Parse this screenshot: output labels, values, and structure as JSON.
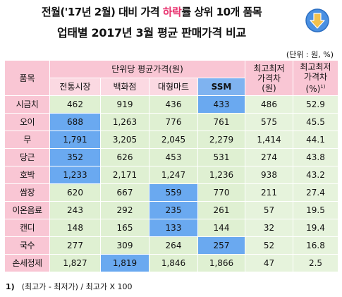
{
  "title": {
    "line1_pre": "전월('17년 2월) 대비 가격 ",
    "line1_hl": "하락",
    "line1_post": "률 상위 10개 품목",
    "line2": "업태별 2017년 3월 평균 판매가격 비교",
    "highlight_color": "#e8336f",
    "arrow_icon": "down-arrow-icon",
    "arrow_color": "#4a90e2"
  },
  "unit": "(단위 : 원, %)",
  "header": {
    "item": "품목",
    "avg_price": "단위당 평균가격(원)",
    "gap": "최고최저\n가격차\n(원)",
    "rate": "최고최저\n가격차",
    "rate_pct": "(%)",
    "rate_sup": "1)",
    "shops": [
      "전통시장",
      "백화점",
      "대형마트",
      "SSM"
    ]
  },
  "rows": [
    {
      "name": "시금치",
      "values": [
        "462",
        "919",
        "436",
        "433"
      ],
      "min_index": 3,
      "gap": "486",
      "rate": "52.9"
    },
    {
      "name": "오이",
      "values": [
        "688",
        "1,263",
        "776",
        "761"
      ],
      "min_index": 0,
      "gap": "575",
      "rate": "45.5"
    },
    {
      "name": "무",
      "values": [
        "1,791",
        "3,205",
        "2,045",
        "2,279"
      ],
      "min_index": 0,
      "gap": "1,414",
      "rate": "44.1"
    },
    {
      "name": "당근",
      "values": [
        "352",
        "626",
        "453",
        "531"
      ],
      "min_index": 0,
      "gap": "274",
      "rate": "43.8"
    },
    {
      "name": "호박",
      "values": [
        "1,233",
        "2,171",
        "1,247",
        "1,236"
      ],
      "min_index": 0,
      "gap": "938",
      "rate": "43.2"
    },
    {
      "name": "쌈장",
      "values": [
        "620",
        "667",
        "559",
        "770"
      ],
      "min_index": 2,
      "gap": "211",
      "rate": "27.4"
    },
    {
      "name": "이온음료",
      "values": [
        "243",
        "292",
        "235",
        "261"
      ],
      "min_index": 2,
      "gap": "57",
      "rate": "19.5"
    },
    {
      "name": "캔디",
      "values": [
        "148",
        "165",
        "133",
        "144"
      ],
      "min_index": 2,
      "gap": "32",
      "rate": "19.4"
    },
    {
      "name": "국수",
      "values": [
        "277",
        "309",
        "264",
        "257"
      ],
      "min_index": 3,
      "gap": "52",
      "rate": "16.8"
    },
    {
      "name": "손세정제",
      "values": [
        "1,827",
        "1,819",
        "1,846",
        "1,866"
      ],
      "min_index": 1,
      "gap": "47",
      "rate": "2.5"
    }
  ],
  "note": {
    "num": "1)",
    "text": "(최고가 - 최저가) / 최고가 X 100"
  },
  "colors": {
    "header_pink": "#f9c6d4",
    "cell_green": "#dff0d2",
    "min_blue": "#6aa9f0"
  }
}
